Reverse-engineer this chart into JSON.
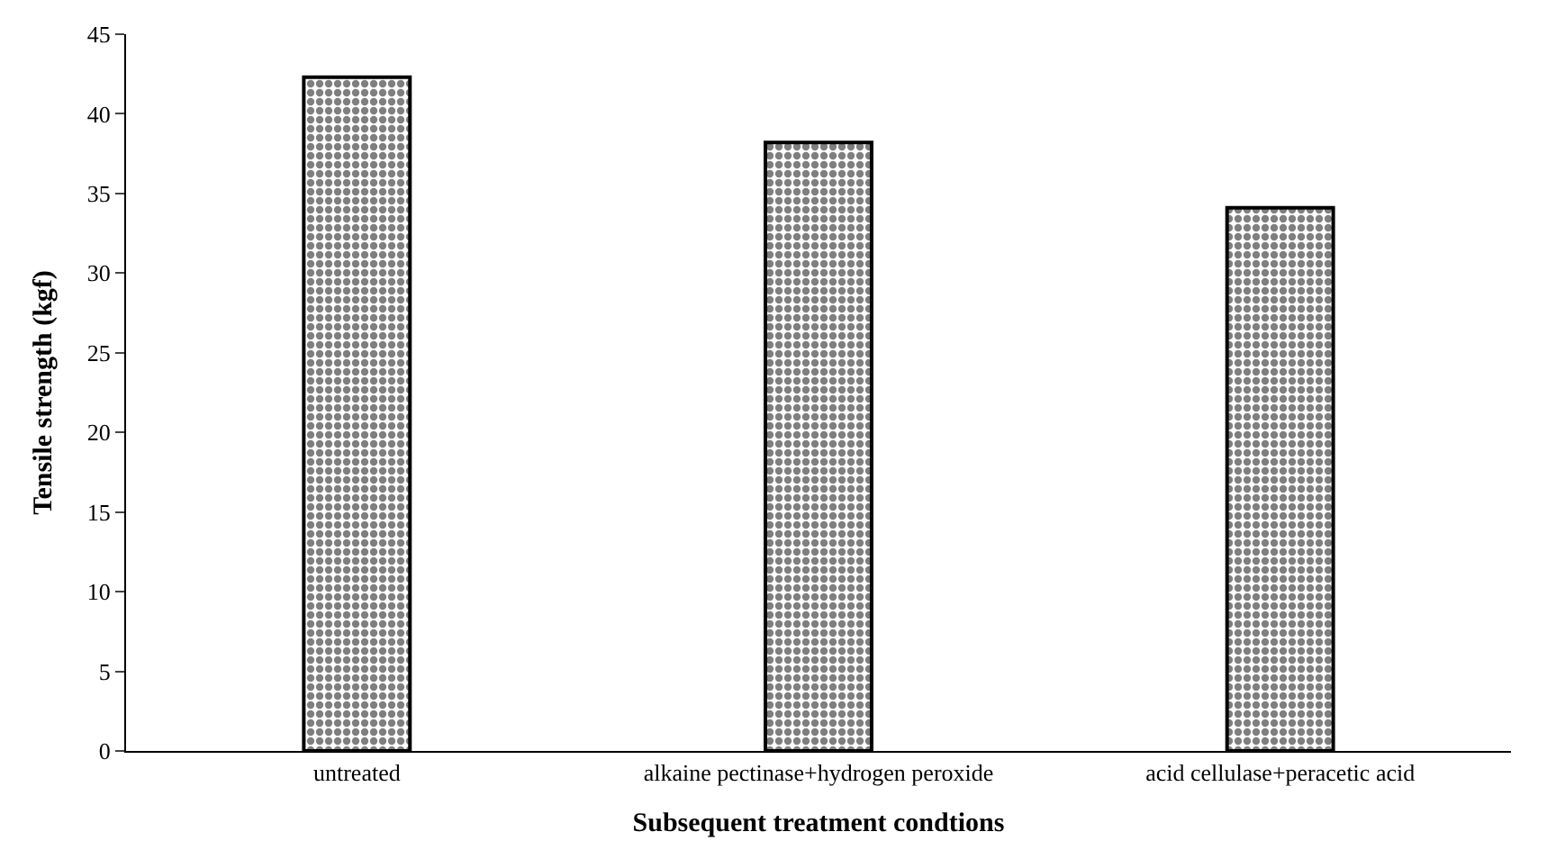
{
  "chart_data": {
    "type": "bar",
    "xlabel": "Subsequent treatment condtions",
    "ylabel": "Tensile strength (kgf)",
    "categories": [
      "untreated",
      "alkaine pectinase+hydrogen peroxide",
      "acid cellulase+peracetic acid"
    ],
    "values": [
      42.3,
      38.2,
      34.1
    ],
    "color": "#000000",
    "ylim": [
      0,
      45
    ],
    "yticks": [
      0,
      5,
      10,
      15,
      20,
      25,
      30,
      35,
      40,
      45
    ]
  }
}
